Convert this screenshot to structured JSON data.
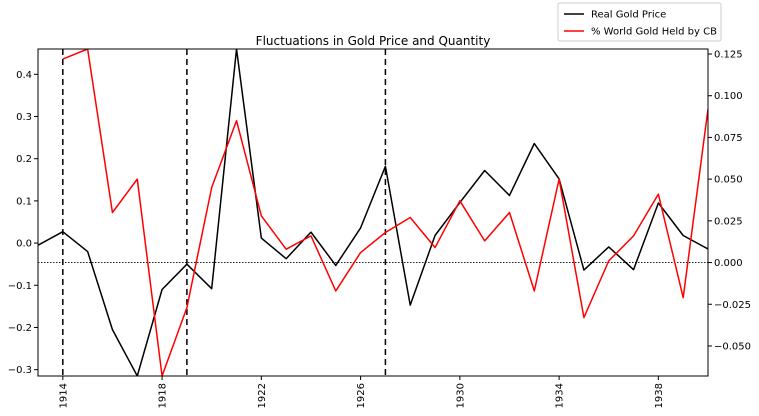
{
  "chart_data": {
    "type": "line",
    "title": "Fluctuations in Gold Price and Quantity",
    "xlabel": "",
    "ylabel_left": "",
    "ylabel_right": "",
    "x": [
      1913,
      1914,
      1915,
      1916,
      1917,
      1918,
      1919,
      1920,
      1921,
      1922,
      1923,
      1924,
      1925,
      1926,
      1927,
      1928,
      1929,
      1930,
      1931,
      1932,
      1933,
      1934,
      1935,
      1936,
      1937,
      1938,
      1939,
      1940
    ],
    "x_ticks": [
      1914,
      1918,
      1922,
      1926,
      1930,
      1934,
      1938
    ],
    "x_tick_labels": [
      "1914",
      "1918",
      "1922",
      "1926",
      "1930",
      "1934",
      "1938"
    ],
    "xlim": [
      1913,
      1940
    ],
    "y_left": {
      "lim": [
        -0.315,
        0.46
      ],
      "ticks": [
        -0.3,
        -0.2,
        -0.1,
        0.0,
        0.1,
        0.2,
        0.3,
        0.4
      ],
      "tick_labels": [
        "−0.3",
        "−0.2",
        "−0.1",
        "0.0",
        "0.1",
        "0.2",
        "0.3",
        "0.4"
      ]
    },
    "y_right": {
      "lim": [
        -0.068,
        0.128
      ],
      "ticks": [
        -0.05,
        -0.025,
        0.0,
        0.025,
        0.05,
        0.075,
        0.1,
        0.125
      ],
      "tick_labels": [
        "−0.050",
        "−0.025",
        "0.000",
        "0.025",
        "0.050",
        "0.075",
        "0.100",
        "0.125"
      ]
    },
    "series": [
      {
        "name": "Real Gold Price",
        "color": "#000000",
        "axis": "left",
        "values": [
          -0.005,
          0.027,
          -0.02,
          -0.205,
          -0.315,
          -0.11,
          -0.05,
          -0.108,
          0.46,
          0.012,
          -0.037,
          0.026,
          -0.053,
          0.036,
          0.182,
          -0.147,
          0.018,
          0.096,
          0.172,
          0.113,
          0.236,
          0.152,
          -0.064,
          -0.009,
          -0.063,
          0.095,
          0.018,
          -0.014
        ]
      },
      {
        "name": "% World Gold Held by CB",
        "color": "#ff0000",
        "axis": "right",
        "values": [
          null,
          0.122,
          0.128,
          0.03,
          0.05,
          -0.068,
          -0.027,
          0.045,
          0.085,
          0.028,
          0.008,
          0.016,
          -0.017,
          0.006,
          0.018,
          0.027,
          0.009,
          0.037,
          0.013,
          0.03,
          -0.017,
          0.05,
          -0.033,
          0.001,
          0.016,
          0.041,
          -0.021,
          0.092
        ]
      }
    ],
    "vlines": [
      1914,
      1919,
      1927
    ],
    "hline_right": 0.0,
    "legend_position": "top-right-outside",
    "grid": false
  }
}
